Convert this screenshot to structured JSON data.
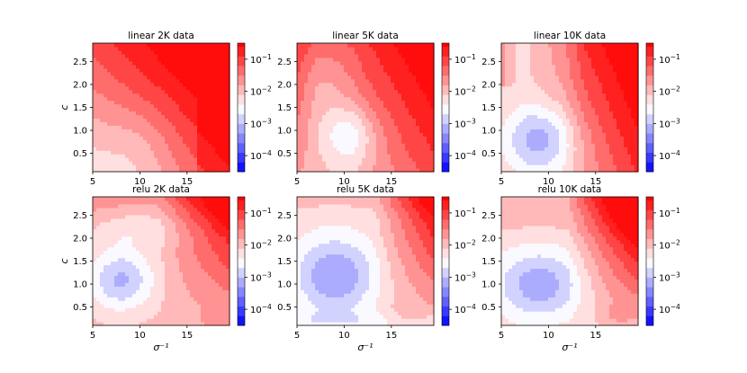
{
  "chart_data": [
    {
      "type": "heatmap",
      "title": "linear 2K data",
      "field": "lin2",
      "ylabel": "c",
      "xlabel": "",
      "xlim": [
        5,
        19.5
      ],
      "ylim": [
        0.1,
        2.9
      ],
      "xticks": [
        "5",
        "10",
        "15"
      ],
      "yticks": [
        "0.5",
        "1.0",
        "1.5",
        "2.0",
        "2.5"
      ],
      "colorbar": {
        "scale": "log",
        "range": [
          "1e-4.5",
          "1e-0.5"
        ],
        "ticks": [
          "10^{-1}",
          "10^{-2}",
          "10^{-3}",
          "10^{-4}"
        ]
      }
    },
    {
      "type": "heatmap",
      "title": "linear 5K data",
      "field": "lin5",
      "ylabel": "",
      "xlabel": "",
      "xlim": [
        5,
        19.5
      ],
      "ylim": [
        0.1,
        2.9
      ],
      "xticks": [
        "5",
        "10",
        "15"
      ],
      "yticks": [
        "0.5",
        "1.0",
        "1.5",
        "2.0",
        "2.5"
      ],
      "colorbar": {
        "scale": "log",
        "range": [
          "1e-4.5",
          "1e-0.5"
        ],
        "ticks": [
          "10^{-1}",
          "10^{-2}",
          "10^{-3}",
          "10^{-4}"
        ]
      }
    },
    {
      "type": "heatmap",
      "title": "linear 10K data",
      "field": "lin10",
      "ylabel": "",
      "xlabel": "",
      "xlim": [
        5,
        19.5
      ],
      "ylim": [
        0.1,
        2.9
      ],
      "xticks": [
        "5",
        "10",
        "15"
      ],
      "yticks": [
        "0.5",
        "1.0",
        "1.5",
        "2.0",
        "2.5"
      ],
      "colorbar": {
        "scale": "log",
        "range": [
          "1e-4.5",
          "1e-0.5"
        ],
        "ticks": [
          "10^{-1}",
          "10^{-2}",
          "10^{-3}",
          "10^{-4}"
        ]
      }
    },
    {
      "type": "heatmap",
      "title": "relu 2K data",
      "field": "relu2",
      "ylabel": "c",
      "xlabel": "σ⁻¹",
      "xlim": [
        5,
        19.5
      ],
      "ylim": [
        0.1,
        2.9
      ],
      "xticks": [
        "5",
        "10",
        "15"
      ],
      "yticks": [
        "0.5",
        "1.0",
        "1.5",
        "2.0",
        "2.5"
      ],
      "colorbar": {
        "scale": "log",
        "range": [
          "1e-4.5",
          "1e-0.5"
        ],
        "ticks": [
          "10^{-1}",
          "10^{-2}",
          "10^{-3}",
          "10^{-4}"
        ]
      }
    },
    {
      "type": "heatmap",
      "title": "relu 5K data",
      "field": "relu5",
      "ylabel": "",
      "xlabel": "σ⁻¹",
      "xlim": [
        5,
        19.5
      ],
      "ylim": [
        0.1,
        2.9
      ],
      "xticks": [
        "5",
        "10",
        "15"
      ],
      "yticks": [
        "0.5",
        "1.0",
        "1.5",
        "2.0",
        "2.5"
      ],
      "colorbar": {
        "scale": "log",
        "range": [
          "1e-4.5",
          "1e-0.5"
        ],
        "ticks": [
          "10^{-1}",
          "10^{-2}",
          "10^{-3}",
          "10^{-4}"
        ]
      }
    },
    {
      "type": "heatmap",
      "title": "relu 10K data",
      "field": "relu10",
      "ylabel": "",
      "xlabel": "σ⁻¹",
      "xlim": [
        5,
        19.5
      ],
      "ylim": [
        0.1,
        2.9
      ],
      "xticks": [
        "5",
        "10",
        "15"
      ],
      "yticks": [
        "0.5",
        "1.0",
        "1.5",
        "2.0",
        "2.5"
      ],
      "colorbar": {
        "scale": "log",
        "range": [
          "1e-4.5",
          "1e-0.5"
        ],
        "ticks": [
          "10^{-1}",
          "10^{-2}",
          "10^{-3}",
          "10^{-4}"
        ]
      }
    }
  ],
  "colors": {
    "low": "#0000ff",
    "mid": "#ffffff",
    "high": "#ff0000"
  }
}
